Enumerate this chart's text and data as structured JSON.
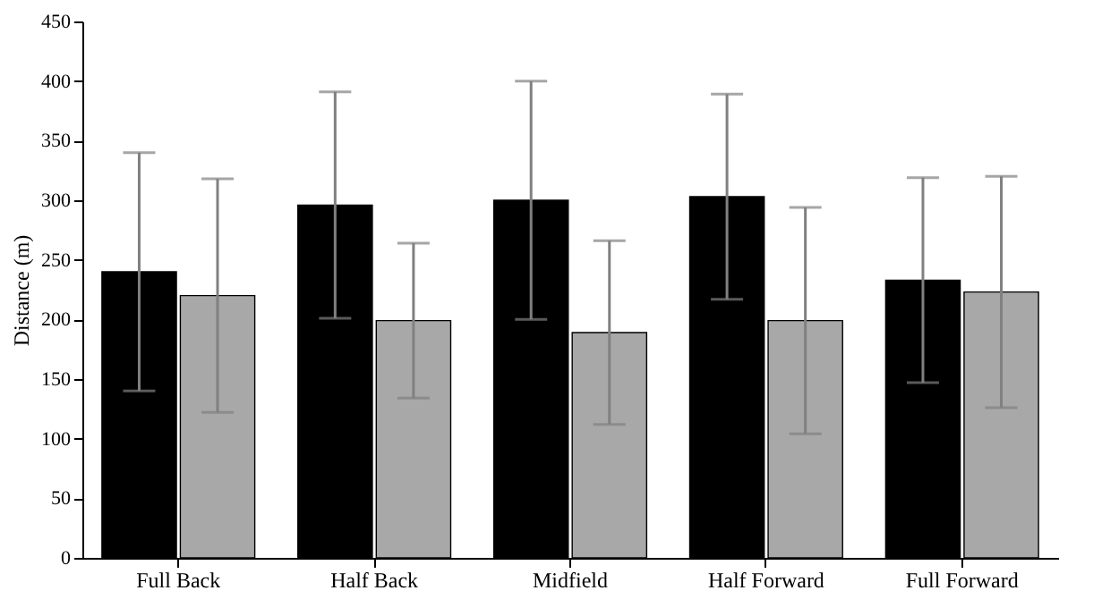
{
  "chart_data": {
    "type": "bar",
    "ylabel": "Distance (m)",
    "categories": [
      "Full Back",
      "Half Back",
      "Midfield",
      "Half Forward",
      "Full Forward"
    ],
    "series": [
      {
        "color": "#000000",
        "values": [
          240,
          296,
          300,
          303,
          233
        ],
        "errors": [
          100,
          95,
          100,
          86,
          86
        ]
      },
      {
        "color": "#a8a8a8",
        "values": [
          220,
          199,
          189,
          199,
          223
        ],
        "errors": [
          98,
          65,
          77,
          95,
          97
        ]
      }
    ],
    "ylim": [
      0,
      450
    ],
    "yticks": [
      0,
      50,
      100,
      150,
      200,
      250,
      300,
      350,
      400,
      450
    ],
    "grid": false,
    "legend": false
  }
}
